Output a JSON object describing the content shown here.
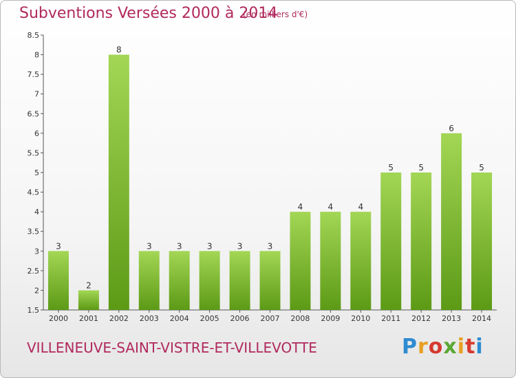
{
  "header": {
    "title": "Subventions Versées 2000 à 2014",
    "subtitle": "(en milliers d'€)"
  },
  "footer": {
    "commune": "VILLENEUVE-SAINT-VISTRE-ET-VILLEVOTTE",
    "brand": "Proxiti"
  },
  "colors": {
    "title": "#b0285c",
    "bar_light": "#9fd44f",
    "bar_dark": "#5e9c17",
    "axis": "#555555"
  },
  "chart_data": {
    "type": "bar",
    "title": "Subventions Versées 2000 à 2014",
    "subtitle": "(en milliers d'€)",
    "xlabel": "",
    "ylabel": "",
    "categories": [
      "2000",
      "2001",
      "2002",
      "2003",
      "2004",
      "2005",
      "2006",
      "2007",
      "2008",
      "2009",
      "2010",
      "2011",
      "2012",
      "2013",
      "2014"
    ],
    "values": [
      3,
      2,
      8,
      3,
      3,
      3,
      3,
      3,
      4,
      4,
      4,
      5,
      5,
      6,
      5
    ],
    "data_labels": [
      "3",
      "2",
      "8",
      "3",
      "3",
      "3",
      "3",
      "3",
      "4",
      "4",
      "4",
      "5",
      "5",
      "6",
      "5"
    ],
    "ylim": [
      1.5,
      8.5
    ],
    "yticks": [
      "1.5",
      "2",
      "2.5",
      "3",
      "3.5",
      "4",
      "4.5",
      "5",
      "5.5",
      "6",
      "6.5",
      "7",
      "7.5",
      "8",
      "8.5"
    ],
    "grid": false,
    "legend": "none"
  }
}
